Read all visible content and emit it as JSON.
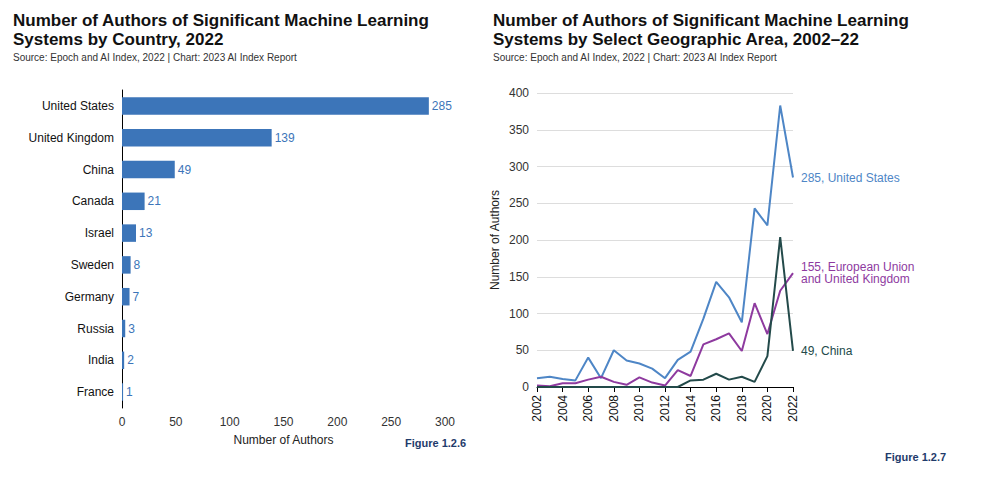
{
  "chart_data": [
    {
      "type": "bar",
      "title": "Number of Authors of Significant Machine Learning Systems by Country, 2022",
      "subtitle": "Source: Epoch and AI Index, 2022 | Chart: 2023 AI Index Report",
      "figure_label": "Figure 1.2.6",
      "x_label": "Number of Authors",
      "orientation": "horizontal",
      "categories": [
        "United States",
        "United Kingdom",
        "China",
        "Canada",
        "Israel",
        "Sweden",
        "Germany",
        "Russia",
        "India",
        "France"
      ],
      "values": [
        285,
        139,
        49,
        21,
        13,
        8,
        7,
        3,
        2,
        1
      ],
      "color": "#3c75b9",
      "xlim": [
        0,
        300
      ],
      "xticks": [
        0,
        50,
        100,
        150,
        200,
        250,
        300
      ],
      "data_labels": true,
      "grid": false
    },
    {
      "type": "line",
      "title": "Number of Authors of Significant Machine Learning Systems by Select Geographic Area, 2002–22",
      "subtitle": "Source: Epoch and AI Index, 2022 | Chart: 2023 AI Index Report",
      "figure_label": "Figure 1.2.7",
      "y_label": "Number of Authors",
      "x": [
        2002,
        2003,
        2004,
        2005,
        2006,
        2007,
        2008,
        2009,
        2010,
        2011,
        2012,
        2013,
        2014,
        2015,
        2016,
        2017,
        2018,
        2019,
        2020,
        2021,
        2022
      ],
      "series": [
        {
          "name": "United States",
          "end_label": "285, United States",
          "color": "#4e86c6",
          "values": [
            12,
            14,
            11,
            9,
            40,
            12,
            50,
            36,
            32,
            25,
            12,
            37,
            48,
            93,
            143,
            122,
            88,
            243,
            220,
            383,
            285
          ]
        },
        {
          "name": "European Union and United Kingdom",
          "end_label": "155, European Union and United Kingdom",
          "color": "#8e3a9f",
          "values": [
            2,
            1,
            5,
            5,
            10,
            14,
            7,
            3,
            13,
            6,
            2,
            23,
            15,
            58,
            65,
            73,
            49,
            114,
            72,
            131,
            155
          ]
        },
        {
          "name": "China",
          "end_label": "49, China",
          "color": "#234a4a",
          "values": [
            0,
            0,
            0,
            0,
            0,
            0,
            0,
            0,
            0,
            0,
            0,
            0,
            9,
            10,
            18,
            10,
            14,
            7,
            42,
            204,
            49
          ]
        }
      ],
      "xlim": [
        2002,
        2022
      ],
      "xticks": [
        2002,
        2004,
        2006,
        2008,
        2010,
        2012,
        2014,
        2016,
        2018,
        2020,
        2022
      ],
      "ylim": [
        0,
        400
      ],
      "yticks": [
        0,
        50,
        100,
        150,
        200,
        250,
        300,
        350,
        400
      ],
      "grid": true
    }
  ]
}
